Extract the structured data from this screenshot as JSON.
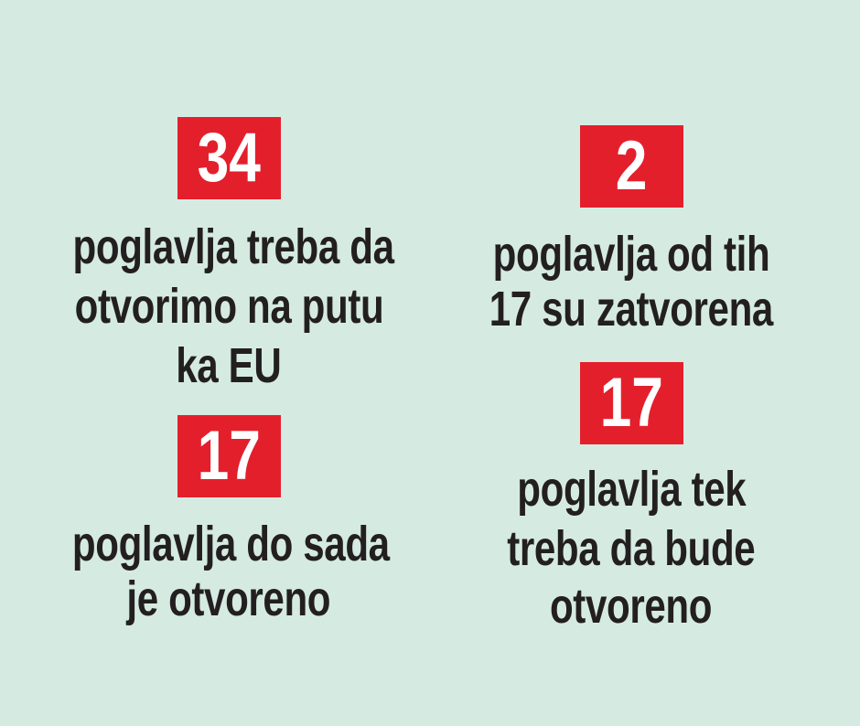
{
  "items": [
    {
      "number": "34",
      "lines": [
        "poglavlja treba da",
        "otvorimo na putu",
        "ka EU"
      ]
    },
    {
      "number": "17",
      "lines": [
        "poglavlja do sada",
        "je otvoreno"
      ]
    },
    {
      "number": "2",
      "lines": [
        "poglavlja od tih",
        "17 su zatvorena"
      ]
    },
    {
      "number": "17",
      "lines": [
        "poglavlja tek",
        "treba da bude",
        "otvoreno"
      ]
    }
  ]
}
